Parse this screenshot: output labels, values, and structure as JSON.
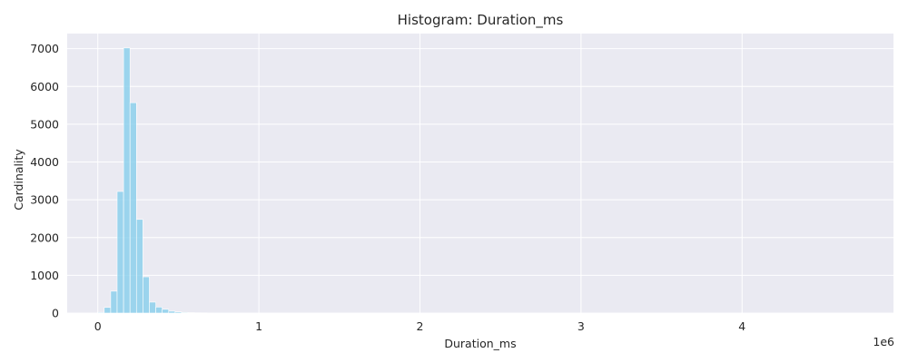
{
  "chart_data": {
    "type": "bar",
    "title": "Histogram: Duration_ms",
    "xlabel": "Duration_ms",
    "ylabel": "Cardinality",
    "x_offset_label": "1e6",
    "xlim": [
      -0.19,
      4.94
    ],
    "ylim": [
      0,
      7400
    ],
    "grid": true,
    "background": "#EAEAF2",
    "grid_color": "#FFFFFF",
    "bar_color": "#87CEEB",
    "bar_edge_color": "#FFFFFF",
    "bin_width": 0.04,
    "bin_start": 0.0,
    "values": [
      20,
      150,
      580,
      3220,
      7020,
      5570,
      2480,
      960,
      290,
      160,
      100,
      50,
      30,
      18,
      12,
      8,
      6,
      4,
      3,
      2,
      2,
      1,
      1,
      1,
      1
    ],
    "x_ticks": [
      {
        "value": 0,
        "label": "0"
      },
      {
        "value": 1,
        "label": "1"
      },
      {
        "value": 2,
        "label": "2"
      },
      {
        "value": 3,
        "label": "3"
      },
      {
        "value": 4,
        "label": "4"
      }
    ],
    "y_ticks": [
      {
        "value": 0,
        "label": "0"
      },
      {
        "value": 1000,
        "label": "1000"
      },
      {
        "value": 2000,
        "label": "2000"
      },
      {
        "value": 3000,
        "label": "3000"
      },
      {
        "value": 4000,
        "label": "4000"
      },
      {
        "value": 5000,
        "label": "5000"
      },
      {
        "value": 6000,
        "label": "6000"
      },
      {
        "value": 7000,
        "label": "7000"
      }
    ]
  }
}
